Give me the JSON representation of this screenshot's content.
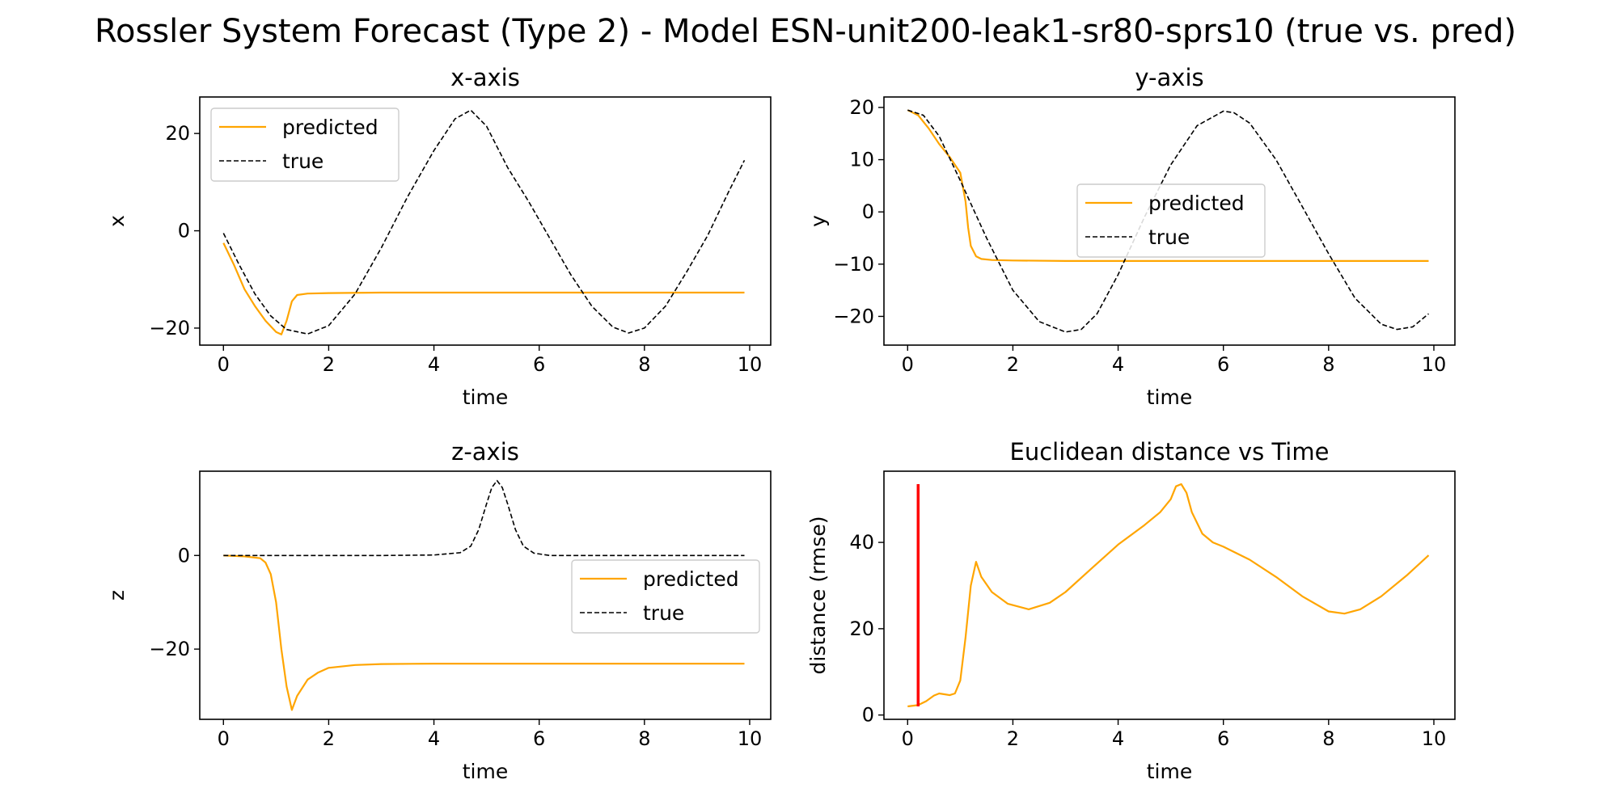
{
  "figure": {
    "title": "Rossler System Forecast (Type 2) - Model ESN-unit200-leak1-sr80-sprs10 (true vs. pred)"
  },
  "colors": {
    "predicted": "#ffa500",
    "true": "#000000",
    "marker": "#ff0000"
  },
  "chart_data": [
    {
      "type": "line",
      "title": "x-axis",
      "xlabel": "time",
      "ylabel": "x",
      "xlim": [
        -0.45,
        10.4
      ],
      "ylim": [
        -23.5,
        27.5
      ],
      "xticks": [
        0,
        2,
        4,
        6,
        8,
        10
      ],
      "yticks": [
        -20,
        0,
        20
      ],
      "legend": {
        "position": "upper-left",
        "entries": [
          "predicted",
          "true"
        ]
      },
      "series": [
        {
          "name": "predicted",
          "style": "solid",
          "color": "#ffa500",
          "x": [
            0,
            0.2,
            0.4,
            0.6,
            0.8,
            1.0,
            1.1,
            1.2,
            1.3,
            1.4,
            1.6,
            2.0,
            3.0,
            4.0,
            5.0,
            6.0,
            7.0,
            8.0,
            9.0,
            9.9
          ],
          "y": [
            -2.5,
            -7,
            -12,
            -15.5,
            -18.5,
            -20.8,
            -21.3,
            -18.5,
            -14.5,
            -13.2,
            -12.9,
            -12.8,
            -12.7,
            -12.7,
            -12.7,
            -12.7,
            -12.7,
            -12.7,
            -12.7,
            -12.7
          ]
        },
        {
          "name": "true",
          "style": "dashed",
          "color": "#000000",
          "x": [
            0,
            0.3,
            0.6,
            0.9,
            1.2,
            1.6,
            2.0,
            2.5,
            3.0,
            3.5,
            4.0,
            4.4,
            4.7,
            5.0,
            5.4,
            5.8,
            6.2,
            6.6,
            7.0,
            7.4,
            7.7,
            8.0,
            8.4,
            8.8,
            9.2,
            9.6,
            9.9
          ],
          "y": [
            -0.5,
            -7,
            -13,
            -17.5,
            -20.3,
            -21.2,
            -19.5,
            -13,
            -3.5,
            7,
            16.5,
            23,
            24.8,
            21.5,
            13,
            6,
            -1.5,
            -9,
            -15.5,
            -19.8,
            -21,
            -20,
            -15.5,
            -8.5,
            -1,
            8,
            14.5
          ]
        }
      ]
    },
    {
      "type": "line",
      "title": "y-axis",
      "xlabel": "time",
      "ylabel": "y",
      "xlim": [
        -0.45,
        10.4
      ],
      "ylim": [
        -25.5,
        22.0
      ],
      "xticks": [
        0,
        2,
        4,
        6,
        8,
        10
      ],
      "yticks": [
        -20,
        -10,
        0,
        10,
        20
      ],
      "legend": {
        "position": "center",
        "entries": [
          "predicted",
          "true"
        ]
      },
      "series": [
        {
          "name": "predicted",
          "style": "solid",
          "color": "#ffa500",
          "x": [
            0,
            0.2,
            0.4,
            0.6,
            0.8,
            1.0,
            1.1,
            1.15,
            1.2,
            1.3,
            1.4,
            1.6,
            2.0,
            3.0,
            4.0,
            5.0,
            6.0,
            7.0,
            8.0,
            9.0,
            9.9
          ],
          "y": [
            19.5,
            18.5,
            16,
            13,
            10.5,
            7.5,
            2,
            -3,
            -6.5,
            -8.5,
            -9,
            -9.2,
            -9.3,
            -9.4,
            -9.4,
            -9.4,
            -9.4,
            -9.4,
            -9.4,
            -9.4,
            -9.4
          ]
        },
        {
          "name": "true",
          "style": "dashed",
          "color": "#000000",
          "x": [
            0,
            0.3,
            0.6,
            1.0,
            1.5,
            2.0,
            2.5,
            3.0,
            3.3,
            3.6,
            4.0,
            4.5,
            5.0,
            5.5,
            6.0,
            6.2,
            6.5,
            7.0,
            7.5,
            8.0,
            8.5,
            9.0,
            9.3,
            9.6,
            9.9
          ],
          "y": [
            19.5,
            18.5,
            14.5,
            6,
            -5,
            -15,
            -21,
            -23,
            -22.5,
            -19.5,
            -12,
            -1,
            9,
            16.5,
            19.3,
            19,
            17,
            10,
            1,
            -8,
            -16.5,
            -21.5,
            -22.5,
            -22,
            -19.5
          ]
        }
      ]
    },
    {
      "type": "line",
      "title": "z-axis",
      "xlabel": "time",
      "ylabel": "z",
      "xlim": [
        -0.45,
        10.4
      ],
      "ylim": [
        -35.0,
        18.0
      ],
      "xticks": [
        0,
        2,
        4,
        6,
        8,
        10
      ],
      "yticks": [
        -20,
        0
      ],
      "legend": {
        "position": "center-right",
        "entries": [
          "predicted",
          "true"
        ]
      },
      "series": [
        {
          "name": "predicted",
          "style": "solid",
          "color": "#ffa500",
          "x": [
            0,
            0.4,
            0.7,
            0.8,
            0.9,
            1.0,
            1.1,
            1.2,
            1.3,
            1.4,
            1.6,
            1.8,
            2.0,
            2.5,
            3.0,
            4.0,
            5.0,
            6.0,
            7.0,
            8.0,
            9.0,
            9.9
          ],
          "y": [
            0,
            -0.2,
            -0.6,
            -1.5,
            -4,
            -10,
            -20,
            -28,
            -33,
            -30,
            -26.5,
            -25,
            -24,
            -23.4,
            -23.2,
            -23.1,
            -23.1,
            -23.1,
            -23.1,
            -23.1,
            -23.1,
            -23.1
          ]
        },
        {
          "name": "true",
          "style": "dashed",
          "color": "#000000",
          "x": [
            0,
            1.0,
            2.0,
            3.0,
            4.0,
            4.5,
            4.7,
            4.85,
            5.0,
            5.1,
            5.2,
            5.3,
            5.4,
            5.55,
            5.7,
            5.9,
            6.2,
            7.0,
            8.0,
            9.0,
            9.9
          ],
          "y": [
            0,
            0,
            0,
            0,
            0.1,
            0.6,
            2,
            5.5,
            11,
            14.5,
            16,
            14.5,
            11,
            5.5,
            2,
            0.5,
            0,
            0,
            0,
            0,
            0
          ]
        }
      ]
    },
    {
      "type": "line",
      "title": "Euclidean distance vs Time",
      "xlabel": "time",
      "ylabel": "distance (rmse)",
      "xlim": [
        -0.45,
        10.4
      ],
      "ylim": [
        -1.0,
        56.5
      ],
      "xticks": [
        0,
        2,
        4,
        6,
        8,
        10
      ],
      "yticks": [
        0,
        20,
        40
      ],
      "vertical_marker": {
        "x": 0.2,
        "y_range": [
          2.0,
          53.5
        ],
        "color": "#ff0000"
      },
      "series": [
        {
          "style": "solid",
          "color": "#ffa500",
          "x": [
            0,
            0.2,
            0.35,
            0.5,
            0.6,
            0.7,
            0.8,
            0.9,
            1.0,
            1.1,
            1.2,
            1.3,
            1.4,
            1.6,
            1.9,
            2.3,
            2.7,
            3.0,
            3.5,
            4.0,
            4.5,
            4.8,
            5.0,
            5.1,
            5.2,
            5.3,
            5.4,
            5.6,
            5.8,
            6.0,
            6.5,
            7.0,
            7.5,
            8.0,
            8.3,
            8.6,
            9.0,
            9.5,
            9.9
          ],
          "y": [
            2,
            2.3,
            3.2,
            4.5,
            5,
            4.8,
            4.6,
            5,
            8,
            18,
            30,
            35.5,
            32,
            28.5,
            25.8,
            24.5,
            26,
            28.5,
            34,
            39.5,
            44,
            47,
            50,
            53,
            53.5,
            51.5,
            47,
            42,
            40,
            39,
            36,
            32,
            27.5,
            24,
            23.5,
            24.5,
            27.5,
            32.5,
            37
          ]
        }
      ]
    }
  ]
}
